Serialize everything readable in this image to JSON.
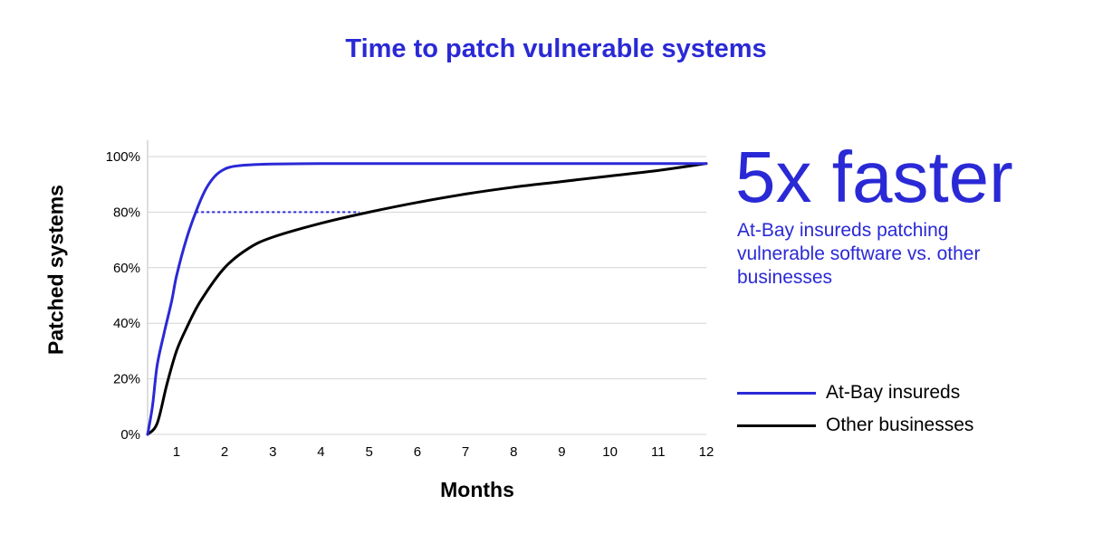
{
  "title": "Time to patch vulnerable systems",
  "headline": "5x faster",
  "subtext": "At-Bay insureds patching vulnerable software vs. other businesses",
  "colors": {
    "title": "#2a29d6",
    "at_bay": "#2a29d6",
    "other": "#000000",
    "grid": "#d4d4d4"
  },
  "chart_data": {
    "type": "line",
    "title": "Time to patch vulnerable systems",
    "xlabel": "Months",
    "ylabel": "Patched systems",
    "xlim": [
      0.4,
      12
    ],
    "ylim": [
      0,
      100
    ],
    "x_ticks": [
      1,
      2,
      3,
      4,
      5,
      6,
      7,
      8,
      9,
      10,
      11,
      12
    ],
    "x_tick_labels": [
      "1",
      "2",
      "3",
      "4",
      "5",
      "6",
      "7",
      "8",
      "9",
      "10",
      "11",
      "12"
    ],
    "y_ticks": [
      0,
      20,
      40,
      60,
      80,
      100
    ],
    "y_tick_labels": [
      "0%",
      "20%",
      "40%",
      "60%",
      "80%",
      "100%"
    ],
    "grid": true,
    "legend_position": "right",
    "series": [
      {
        "name": "At-Bay insureds",
        "color": "#2a29d6",
        "x": [
          0.4,
          0.5,
          0.6,
          0.75,
          0.9,
          1.0,
          1.2,
          1.4,
          1.6,
          1.8,
          2.0,
          2.2,
          2.5,
          3.0,
          4.0,
          5.0,
          6.0,
          8.0,
          10.0,
          12.0
        ],
        "y": [
          0,
          10,
          25,
          37,
          48,
          57,
          70,
          80,
          88,
          93,
          95.5,
          96.5,
          97,
          97.3,
          97.5,
          97.5,
          97.5,
          97.5,
          97.5,
          97.5
        ]
      },
      {
        "name": "Other businesses",
        "color": "#000000",
        "x": [
          0.4,
          0.6,
          0.8,
          1.0,
          1.2,
          1.5,
          2.0,
          2.5,
          3.0,
          4.0,
          5.0,
          6.0,
          7.0,
          8.0,
          9.0,
          10.0,
          11.0,
          12.0
        ],
        "y": [
          0,
          4,
          18,
          30,
          38,
          48,
          60,
          67,
          71,
          76,
          80,
          83.5,
          86.5,
          89,
          91,
          93,
          95,
          97.5
        ]
      }
    ],
    "annotations": [
      {
        "type": "dashed-line",
        "y": 80,
        "x_from": 1.4,
        "x_to": 4.8,
        "color": "#2a29d6"
      }
    ]
  }
}
